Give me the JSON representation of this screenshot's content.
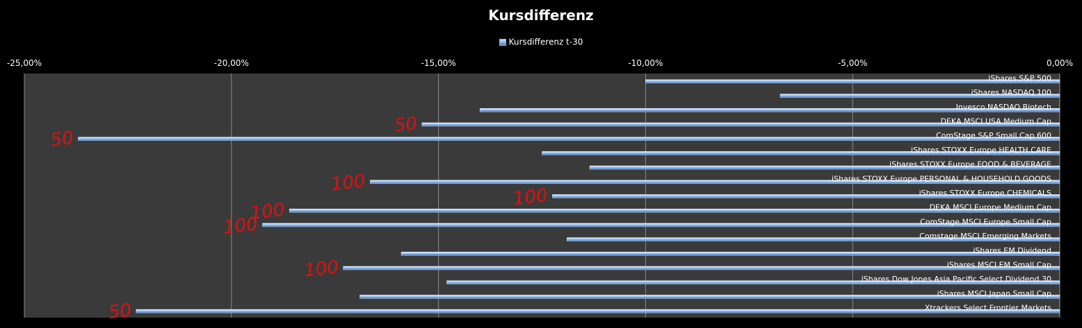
{
  "chart_data": {
    "type": "bar",
    "orientation": "horizontal",
    "title": "Kursdifferenz",
    "legend_position": "top",
    "xlim": [
      -25,
      0
    ],
    "x_ticks": [
      "-25,00%",
      "-20,00%",
      "-15,00%",
      "-10,00%",
      "-5,00%",
      "0,00%"
    ],
    "grid": true,
    "categories": [
      "iShares S&P 500",
      "iShares NASDAQ 100",
      "Invesco NASDAQ Biotech",
      "DEKA MSCI USA Medium Cap",
      "ComStage S&P Small Cap 600",
      "iShares STOXX Europe HEALTH CARE",
      "iShares STOXX Europe FOOD & BEVERAGE",
      "iShares STOXX Europe PERSONAL & HOUSEHOLD GOODS",
      "iShares STOXX Europe CHEMICALS",
      "DEKA MSCI Europe Medium Cap",
      "ComStage MSCI Europe Small Cap",
      "Comstage MSCI Emerging Markets",
      "iShares EM Dividend",
      "iShares MSCI EM Small Cap",
      "iShares Dow Jones Asia Pacific Select Dividend 30",
      "iShares MSCI Japan Small Cap",
      "Xtrackers Select Frontier Markets"
    ],
    "series": [
      {
        "name": "Kursdifferenz t-30",
        "color": "#9cc3f0",
        "values": [
          -10.0,
          -6.75,
          -14.0,
          -15.4,
          -23.7,
          -12.5,
          -11.35,
          -16.65,
          -12.25,
          -18.6,
          -19.25,
          -11.9,
          -15.9,
          -17.3,
          -14.8,
          -16.9,
          -22.3
        ]
      }
    ],
    "annotations": [
      {
        "text": "50",
        "row": 3
      },
      {
        "text": "50",
        "row": 4
      },
      {
        "text": "100",
        "row": 7
      },
      {
        "text": "100",
        "row": 8
      },
      {
        "text": "100",
        "row": 9
      },
      {
        "text": "100",
        "row": 10
      },
      {
        "text": "100",
        "row": 13
      },
      {
        "text": "50",
        "row": 16
      }
    ]
  }
}
